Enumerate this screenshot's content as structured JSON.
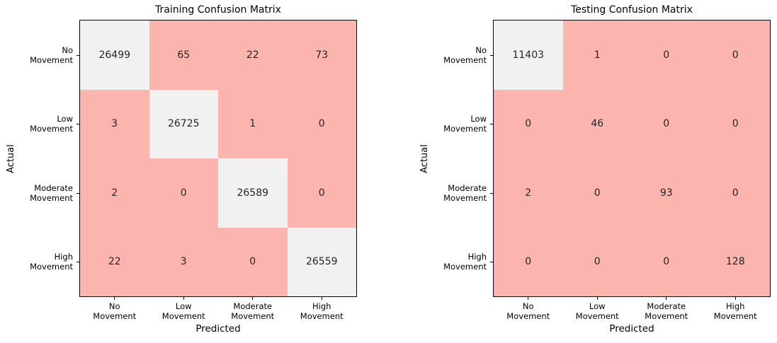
{
  "figure": {
    "background": "#ffffff",
    "text_color": "#000000",
    "annotation_color": "#262626"
  },
  "colors": {
    "low_cell": "#fbb4ae",
    "high_cell": "#f1f1f1",
    "spine": "#000000",
    "high_threshold": 0.5
  },
  "chart_data": [
    {
      "type": "heatmap",
      "title": "Training Confusion Matrix",
      "xlabel": "Predicted",
      "ylabel": "Actual",
      "x_categories": [
        "No\nMovement",
        "Low\nMovement",
        "Moderate\nMovement",
        "High\nMovement"
      ],
      "y_categories": [
        "No\nMovement",
        "Low\nMovement",
        "Moderate\nMovement",
        "High\nMovement"
      ],
      "values": [
        [
          26499,
          65,
          22,
          73
        ],
        [
          3,
          26725,
          1,
          0
        ],
        [
          2,
          0,
          26589,
          0
        ],
        [
          22,
          3,
          0,
          26559
        ]
      ],
      "colormap": "Pastel1",
      "annotated": true,
      "colorbar": false,
      "grid": false
    },
    {
      "type": "heatmap",
      "title": "Testing Confusion Matrix",
      "xlabel": "Predicted",
      "ylabel": "Actual",
      "x_categories": [
        "No\nMovement",
        "Low\nMovement",
        "Moderate\nMovement",
        "High\nMovement"
      ],
      "y_categories": [
        "No\nMovement",
        "Low\nMovement",
        "Moderate\nMovement",
        "High\nMovement"
      ],
      "values": [
        [
          11403,
          1,
          0,
          0
        ],
        [
          0,
          46,
          0,
          0
        ],
        [
          2,
          0,
          93,
          0
        ],
        [
          0,
          0,
          0,
          128
        ]
      ],
      "colormap": "Pastel1",
      "annotated": true,
      "colorbar": false,
      "grid": false
    }
  ]
}
